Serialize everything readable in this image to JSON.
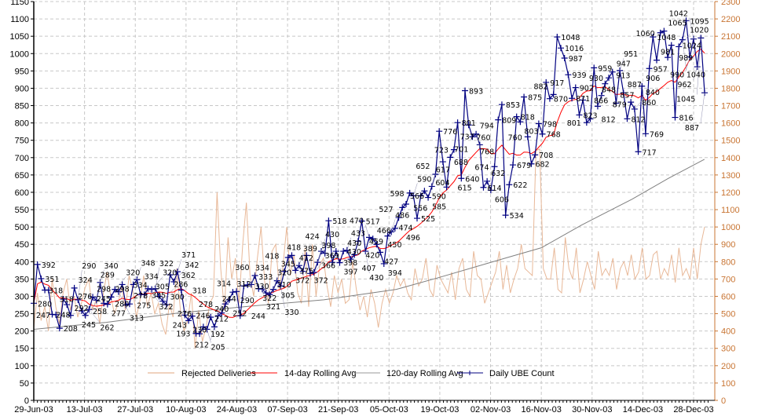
{
  "chart_data": {
    "type": "line",
    "title": "",
    "left_axis": {
      "min": 0,
      "max": 1150,
      "step": 50
    },
    "right_axis": {
      "min": 0,
      "max": 2300,
      "step": 100
    },
    "x_ticks": [
      "29-Jun-03",
      "13-Jul-03",
      "27-Jul-03",
      "10-Aug-03",
      "24-Aug-03",
      "07-Sep-03",
      "21-Sep-03",
      "05-Oct-03",
      "19-Oct-03",
      "02-Nov-03",
      "16-Nov-03",
      "30-Nov-03",
      "14-Dec-03",
      "28-Dec-03"
    ],
    "x_tick_interval_days": 14,
    "grid": true,
    "legend_placement": "bottom-inside",
    "legend": [
      "Rejected Deliveries",
      "14-day Rolling Avg",
      "120-day Rolling Avg",
      "Daily UBE Count"
    ],
    "colors": {
      "rejected": "#e8b898",
      "avg14": "#ff0000",
      "avg120": "#808080",
      "daily": "#000080",
      "right_axis": "#c87432"
    },
    "series": [
      {
        "name": "Daily UBE Count",
        "axis": "left",
        "values": [
          280,
          392,
          351,
          318,
          318,
          248,
          247,
          208,
          292,
          276,
          245,
          324,
          290,
          258,
          245,
          262,
          298,
          289,
          340,
          280,
          277,
          298,
          320,
          313,
          334,
          275,
          278,
          334,
          348,
          305,
          305,
          322,
          320,
          322,
          300,
          286,
          276,
          362,
          342,
          371,
          318,
          246,
          230,
          243,
          193,
          192,
          212,
          205,
          240,
          212,
          244,
          252,
          278,
          290,
          312,
          314,
          244,
          330,
          333,
          334,
          360,
          322,
          321,
          310,
          305,
          320,
          345,
          330,
          372,
          412,
          418,
          375,
          389,
          372,
          418,
          366,
          369,
          398,
          430,
          424,
          518,
          398,
          430,
          397,
          430,
          433,
          407,
          420,
          459,
          517,
          430,
          470,
          466,
          450,
          427,
          394,
          474,
          486,
          496,
          527,
          556,
          566,
          598,
          590,
          525,
          590,
          604,
          585,
          617,
          652,
          776,
          688,
          615,
          701,
          723,
          801,
          640,
          893,
          794,
          760,
          768,
          737,
          614,
          632,
          606,
          674,
          809,
          853,
          534,
          622,
          679,
          818,
          803,
          875,
          760,
          682,
          708,
          798,
          768,
          917,
          870,
          882,
          1048,
          1016,
          987,
          939,
          871,
          902,
          823,
          866,
          801,
          812,
          959,
          848,
          879,
          913,
          930,
          947,
          857,
          951,
          887,
          812,
          860,
          840,
          717,
          906,
          769,
          957,
          1048,
          981,
          1060,
          1065,
          989,
          1024,
          816,
          1020,
          1040,
          1095,
          990,
          1042,
          962,
          1045,
          887
        ]
      },
      {
        "name": "14-day Rolling Avg",
        "axis": "left",
        "window_days": 14
      },
      {
        "name": "120-day Rolling Avg",
        "axis": "left",
        "points": [
          [
            0,
            205
          ],
          [
            20,
            225
          ],
          [
            40,
            252
          ],
          [
            60,
            272
          ],
          [
            80,
            290
          ],
          [
            100,
            320
          ],
          [
            112,
            355
          ],
          [
            130,
            410
          ],
          [
            140,
            440
          ],
          [
            151,
            505
          ],
          [
            165,
            580
          ],
          [
            175,
            640
          ],
          [
            185,
            695
          ]
        ]
      },
      {
        "name": "Rejected Deliveries",
        "axis": "right",
        "values": [
          420,
          620,
          460,
          540,
          400,
          700,
          540,
          440,
          620,
          700,
          520,
          600,
          480,
          560,
          650,
          700,
          520,
          580,
          440,
          620,
          740,
          600,
          500,
          560,
          660,
          520,
          720,
          640,
          480,
          580,
          720,
          540,
          620,
          500,
          560,
          440,
          380,
          560,
          480,
          760,
          520,
          400,
          460,
          620,
          300,
          520,
          340,
          420,
          560,
          600,
          1200,
          760,
          520,
          940,
          700,
          820,
          560,
          900,
          1140,
          720,
          600,
          820,
          1000,
          680,
          560,
          860,
          900,
          640,
          780,
          1000,
          720,
          840,
          620,
          560,
          880,
          540,
          900,
          600,
          780,
          820,
          660,
          540,
          720,
          620,
          700,
          560,
          580,
          800,
          640,
          520,
          600,
          480,
          640,
          560,
          420,
          560,
          640,
          560,
          620,
          720,
          660,
          700,
          620,
          580,
          760,
          660,
          700,
          820,
          640,
          600,
          780,
          700,
          660,
          620,
          740,
          580,
          760,
          820,
          640,
          600,
          860,
          720,
          700,
          560,
          620,
          680,
          740,
          860,
          640,
          780,
          620,
          700,
          760,
          900,
          760,
          740,
          720,
          1440,
          1450,
          760,
          700,
          700,
          880,
          640,
          620,
          940,
          760,
          700,
          880,
          620,
          700,
          800,
          720,
          640,
          860,
          720,
          760,
          720,
          820,
          640,
          760,
          800,
          720,
          840,
          700,
          740,
          880,
          700,
          720,
          840,
          860,
          700,
          760,
          720,
          840,
          680,
          880,
          720,
          760,
          700,
          880,
          700,
          900,
          1000
        ]
      }
    ]
  }
}
